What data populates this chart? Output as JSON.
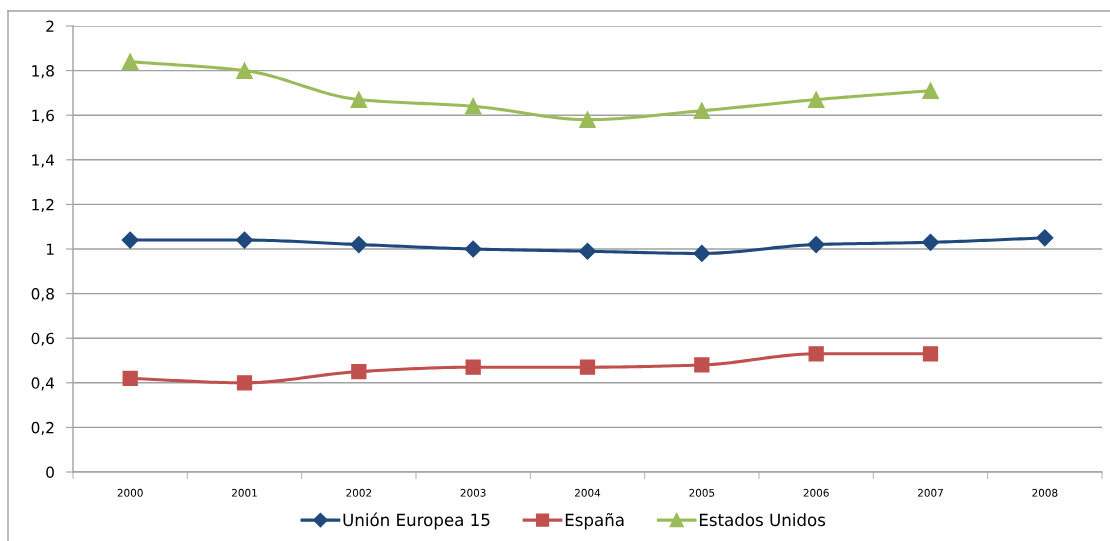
{
  "chart_data": {
    "type": "line",
    "categories": [
      "2000",
      "2001",
      "2002",
      "2003",
      "2004",
      "2005",
      "2006",
      "2007",
      "2008"
    ],
    "series": [
      {
        "name": "Unión Europea 15",
        "color": "#1f497d",
        "marker": "diamond",
        "values": [
          1.04,
          1.04,
          1.02,
          1.0,
          0.99,
          0.98,
          1.02,
          1.03,
          1.05
        ]
      },
      {
        "name": "España",
        "color": "#c0504d",
        "marker": "square",
        "values": [
          0.42,
          0.4,
          0.45,
          0.47,
          0.47,
          0.48,
          0.53,
          0.53,
          null
        ]
      },
      {
        "name": "Estados Unidos",
        "color": "#9bbb59",
        "marker": "triangle",
        "values": [
          1.84,
          1.8,
          1.67,
          1.64,
          1.58,
          1.62,
          1.67,
          1.71,
          null
        ]
      }
    ],
    "ylim": [
      0,
      2
    ],
    "yticks": [
      0,
      {
        "value": 0.2,
        "label": "0,2"
      },
      {
        "value": 0.4,
        "label": "0,4"
      },
      {
        "value": 0.6,
        "label": "0,6"
      },
      {
        "value": 0.8,
        "label": "0,8"
      },
      1,
      {
        "value": 1.2,
        "label": "1,2"
      },
      {
        "value": 1.4,
        "label": "1,4"
      },
      {
        "value": 1.6,
        "label": "1,6"
      },
      {
        "value": 1.8,
        "label": "1,8"
      },
      2
    ],
    "grid": "y",
    "legend": "bottom",
    "line_style": "solid"
  }
}
